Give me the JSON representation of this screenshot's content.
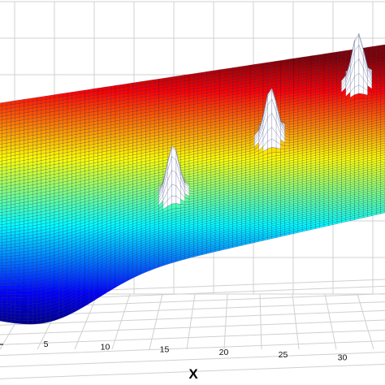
{
  "chart_data": {
    "type": "surface3d",
    "title": "",
    "xlabel": "X",
    "ylabel": "",
    "zlabel": "",
    "x_ticks": [
      5,
      10,
      15,
      20,
      25,
      30
    ],
    "x_range": [
      0,
      36
    ],
    "grid": true,
    "colormap": "jet",
    "surface": "smooth tilted sheet rising toward the back-right, with sharp peaks",
    "peaks": [
      {
        "x": 16.5,
        "y": 0.42
      },
      {
        "x": 25.5,
        "y": 0.62
      },
      {
        "x": 33.5,
        "y": 0.82
      }
    ]
  }
}
